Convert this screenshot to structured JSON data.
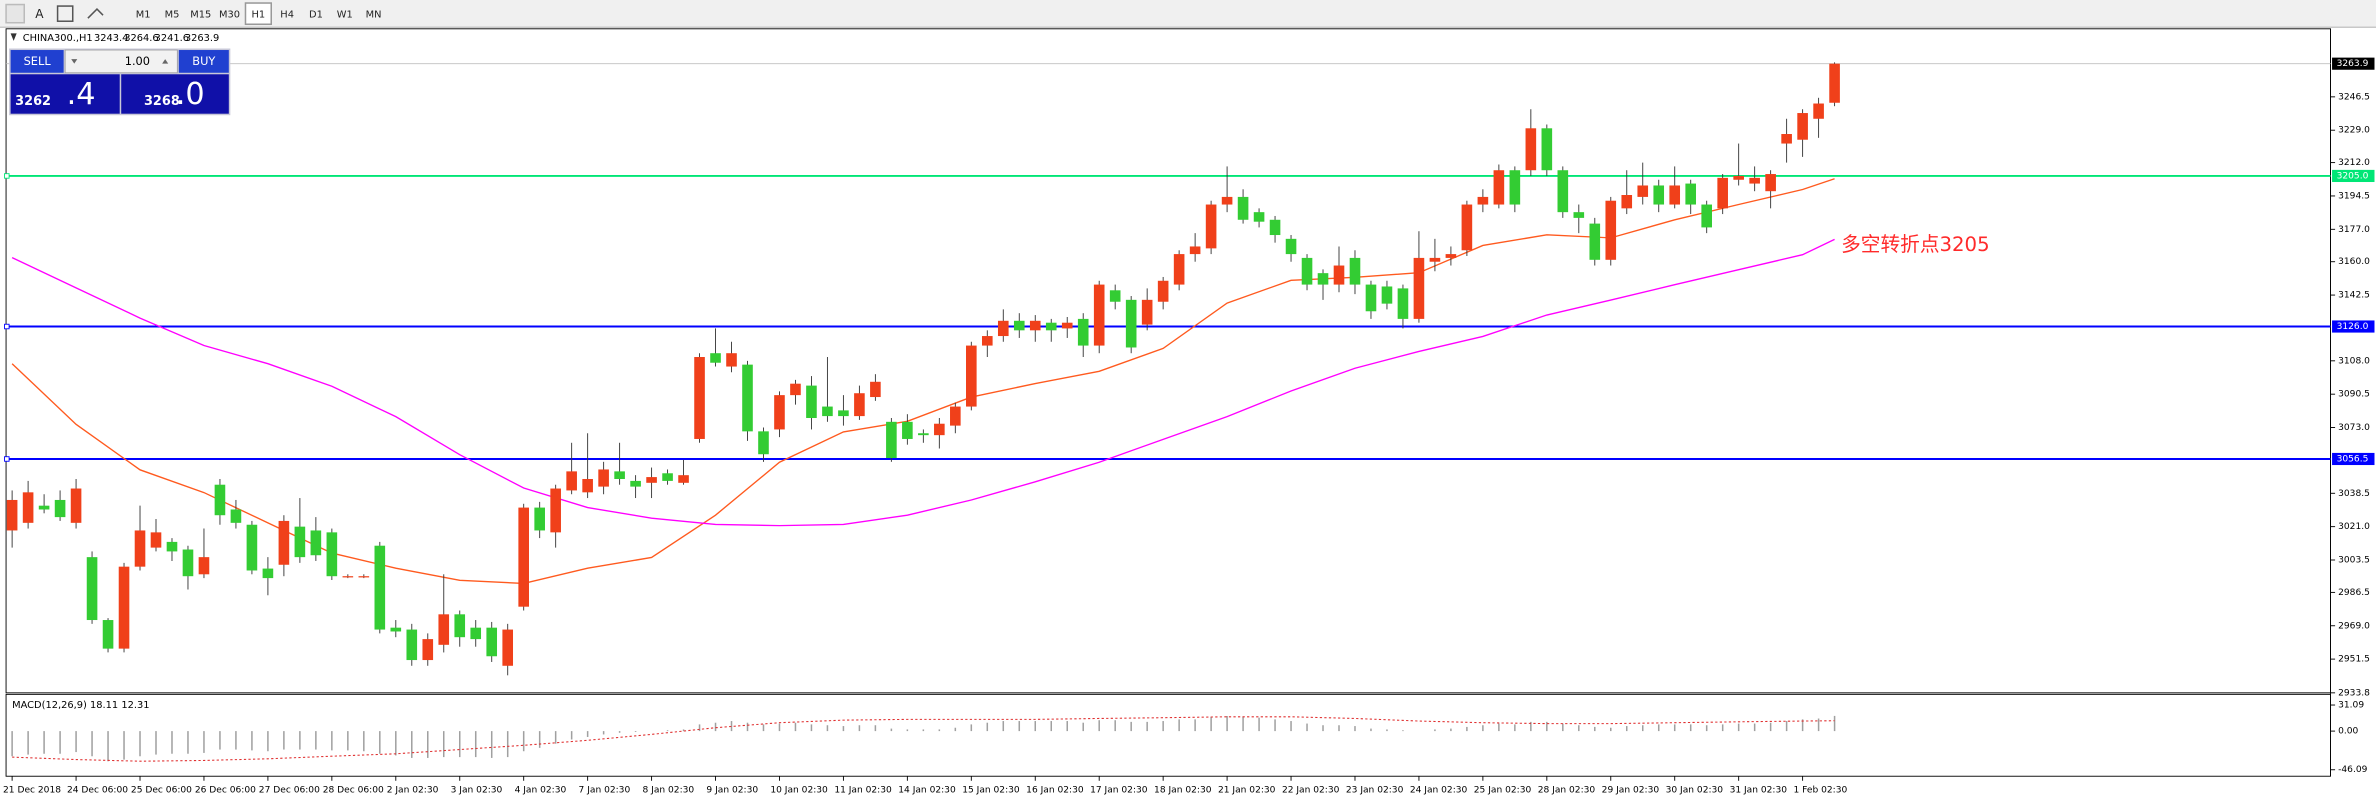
{
  "toolbar": {
    "text_tool": "A",
    "timeframes": [
      "M1",
      "M5",
      "M15",
      "M30",
      "H1",
      "H4",
      "D1",
      "W1",
      "MN"
    ]
  },
  "trade_panel": {
    "sell": "SELL",
    "buy": "BUY",
    "lot": "1.00",
    "sell_price": "3262",
    "sell_pips": ".4",
    "buy_price": "3268",
    "buy_pips": ".0"
  },
  "chart_data": {
    "type": "candlestick",
    "title": "CHINA300.,H1",
    "header_values": [
      3243.4,
      3264.6,
      3241.6,
      3263.9
    ],
    "bull_color": "#f0401a",
    "bear_color": "#33cc33",
    "categories": [
      "21 Dec 2018",
      null,
      null,
      null,
      "24 Dec 06:00",
      null,
      null,
      null,
      "25 Dec 06:00",
      null,
      null,
      null,
      "26 Dec 06:00",
      null,
      null,
      null,
      "27 Dec 06:00",
      null,
      null,
      null,
      "28 Dec 06:00",
      null,
      null,
      null,
      "2 Jan 02:30",
      null,
      null,
      null,
      "3 Jan 02:30",
      null,
      null,
      null,
      "4 Jan 02:30",
      null,
      null,
      null,
      "7 Jan 02:30",
      null,
      null,
      null,
      "8 Jan 02:30",
      null,
      null,
      null,
      "9 Jan 02:30",
      null,
      null,
      null,
      "10 Jan 02:30",
      null,
      null,
      null,
      "11 Jan 02:30",
      null,
      null,
      null,
      "14 Jan 02:30",
      null,
      null,
      null,
      "15 Jan 02:30",
      null,
      null,
      null,
      "16 Jan 02:30",
      null,
      null,
      null,
      "17 Jan 02:30",
      null,
      null,
      null,
      "18 Jan 02:30",
      null,
      null,
      null,
      "21 Jan 02:30",
      null,
      null,
      null,
      "22 Jan 02:30",
      null,
      null,
      null,
      "23 Jan 02:30",
      null,
      null,
      null,
      "24 Jan 02:30",
      null,
      null,
      null,
      "25 Jan 02:30",
      null,
      null,
      null,
      "28 Jan 02:30",
      null,
      null,
      null,
      "29 Jan 02:30",
      null,
      null,
      null,
      "30 Jan 02:30",
      null,
      null,
      null,
      "31 Jan 02:30",
      null,
      null,
      null,
      "1 Feb 02:30",
      null,
      null
    ],
    "open": [
      3019,
      3023,
      3032,
      3035,
      3023,
      3005,
      2972,
      2957,
      3000,
      3010,
      3013,
      3009,
      2996,
      3043,
      3030,
      3022,
      2999,
      3001,
      3021,
      3019,
      3018,
      2995,
      2995,
      3011,
      2968,
      2967,
      2951,
      2959,
      2975,
      2968,
      2968,
      2948,
      2979,
      3031,
      3018,
      3040,
      3039,
      3042,
      3050,
      3045,
      3044,
      3049,
      3044,
      3067,
      3112,
      3105,
      3106,
      3071,
      3072,
      3090,
      3095,
      3084,
      3082,
      3079,
      3089,
      3076,
      3076,
      3070,
      3069,
      3074,
      3084,
      3116,
      3121,
      3129,
      3124,
      3128,
      3125,
      3130,
      3116,
      3145,
      3140,
      3127,
      3139,
      3148,
      3164,
      3167,
      3190,
      3194,
      3186,
      3182,
      3172,
      3162,
      3154,
      3148,
      3162,
      3148,
      3147,
      3146,
      3130,
      3160,
      3162,
      3166,
      3190,
      3190,
      3208,
      3208,
      3230,
      3208,
      3186,
      3180,
      3161,
      3188,
      3194,
      3200,
      3190,
      3201,
      3190,
      3188,
      3203,
      3201,
      3197,
      3222,
      3224,
      3235,
      3243.4
    ],
    "high": [
      3040,
      3045,
      3038,
      3040,
      3046,
      3008,
      2973,
      3002,
      3032,
      3025,
      3015,
      3011,
      3020,
      3046,
      3035,
      3024,
      3005,
      3027,
      3036,
      3026,
      3020,
      2996,
      2996,
      3013,
      2972,
      2970,
      2965,
      2996,
      2977,
      2972,
      2971,
      2970,
      3033,
      3034,
      3043,
      3065,
      3070,
      3055,
      3065,
      3048,
      3052,
      3051,
      3056,
      3112,
      3125,
      3118,
      3108,
      3073,
      3092,
      3098,
      3100,
      3110,
      3090,
      3095,
      3101,
      3078,
      3080,
      3072,
      3078,
      3086,
      3118,
      3124,
      3135,
      3133,
      3132,
      3130,
      3131,
      3133,
      3150,
      3148,
      3142,
      3146,
      3152,
      3166,
      3175,
      3192,
      3210,
      3198,
      3188,
      3184,
      3174,
      3164,
      3156,
      3168,
      3166,
      3150,
      3150,
      3148,
      3176,
      3172,
      3168,
      3192,
      3198,
      3211,
      3210,
      3240,
      3232,
      3210,
      3190,
      3183,
      3194,
      3208,
      3212,
      3203,
      3210,
      3203,
      3192,
      3206,
      3222,
      3210,
      3208,
      3235,
      3240,
      3246,
      3264.6
    ],
    "low": [
      3010,
      3020,
      3028,
      3024,
      3020,
      2970,
      2955,
      2955,
      2998,
      3008,
      3003,
      2988,
      2994,
      3022,
      3020,
      2996,
      2985,
      2995,
      3002,
      3003,
      2993,
      2994,
      2994,
      2965,
      2963,
      2948,
      2948,
      2955,
      2958,
      2958,
      2950,
      2943,
      2977,
      3015,
      3010,
      3038,
      3036,
      3038,
      3043,
      3036,
      3036,
      3043,
      3043,
      3065,
      3105,
      3102,
      3066,
      3055,
      3068,
      3085,
      3072,
      3076,
      3074,
      3077,
      3087,
      3055,
      3064,
      3065,
      3062,
      3070,
      3082,
      3110,
      3118,
      3120,
      3118,
      3118,
      3120,
      3110,
      3112,
      3135,
      3112,
      3124,
      3135,
      3145,
      3160,
      3164,
      3186,
      3180,
      3178,
      3170,
      3160,
      3145,
      3140,
      3144,
      3143,
      3130,
      3135,
      3125,
      3128,
      3155,
      3158,
      3163,
      3186,
      3188,
      3186,
      3205,
      3205,
      3183,
      3175,
      3158,
      3158,
      3185,
      3190,
      3186,
      3188,
      3185,
      3175,
      3185,
      3200,
      3197,
      3188,
      3212,
      3215,
      3225,
      3241.6
    ],
    "close": [
      3035,
      3039,
      3030,
      3026,
      3041,
      2972,
      2957,
      3000,
      3019,
      3018,
      3008,
      2995,
      3005,
      3027,
      3023,
      2998,
      2994,
      3024,
      3005,
      3006,
      2995,
      2995,
      2995,
      2967,
      2966,
      2951,
      2962,
      2975,
      2963,
      2962,
      2953,
      2967,
      3031,
      3019,
      3041,
      3050,
      3046,
      3051,
      3046,
      3042,
      3047,
      3045,
      3048,
      3110,
      3107,
      3112,
      3071,
      3059,
      3090,
      3096,
      3078,
      3079,
      3079,
      3091,
      3097,
      3057,
      3067,
      3069,
      3075,
      3084,
      3116,
      3121,
      3129,
      3124,
      3129,
      3124,
      3128,
      3116,
      3148,
      3139,
      3115,
      3140,
      3150,
      3164,
      3168,
      3190,
      3194,
      3182,
      3181,
      3174,
      3164,
      3148,
      3148,
      3158,
      3148,
      3134,
      3138,
      3130,
      3162,
      3162,
      3164,
      3190,
      3194,
      3208,
      3190,
      3230,
      3208,
      3186,
      3183,
      3161,
      3192,
      3195,
      3200,
      3190,
      3200,
      3190,
      3178,
      3204,
      3205,
      3204,
      3206,
      3227,
      3238,
      3243,
      3263.9
    ],
    "ma_x": [
      0,
      4,
      8,
      12,
      16,
      20,
      24,
      28,
      32,
      36,
      40,
      44,
      48,
      52,
      56,
      60,
      64,
      68,
      72,
      76,
      80,
      84,
      88,
      92,
      96,
      100,
      104,
      108,
      112,
      114
    ],
    "moving_averages": [
      {
        "color": "#ff5a1f",
        "values": [
          3106.5,
          3074.7,
          3050.8,
          3038.9,
          3023,
          3007.1,
          2999.2,
          2992.8,
          2991.2,
          2999.2,
          3004.8,
          3027,
          3054.8,
          3070.7,
          3076.3,
          3089,
          3096.1,
          3102.5,
          3114.5,
          3138.3,
          3150.2,
          3151.8,
          3154.2,
          3168.5,
          3174.1,
          3172.5,
          3182,
          3190,
          3197.9,
          3203.5
        ]
      },
      {
        "color": "#ff00ff",
        "values": [
          3162.2,
          3146.3,
          3130.4,
          3116,
          3106.5,
          3094.6,
          3078.7,
          3058.8,
          3041.3,
          3031,
          3025.4,
          3022.2,
          3021.5,
          3022.2,
          3027,
          3035,
          3044.5,
          3054.8,
          3066.8,
          3078.7,
          3092.2,
          3104.1,
          3112.9,
          3120.8,
          3132,
          3139.9,
          3147.9,
          3155.8,
          3163.7,
          3171.7
        ]
      }
    ],
    "levels": [
      {
        "value": 3205,
        "label": "3205.0",
        "color": "#00e676"
      },
      {
        "value": 3126,
        "label": "3126.0",
        "color": "#0000ff"
      },
      {
        "value": 3056.5,
        "label": "3056.5",
        "color": "#0000ff"
      }
    ],
    "current_price": {
      "value": 3263.9,
      "label": "3263.9"
    },
    "annotation": "多空转折点3205",
    "annotation_color": "#ff2a2a",
    "ylim": [
      2933.8,
      3282.2
    ],
    "yticks": [
      3246.5,
      {
        "value": 3229,
        "label": "3229.0"
      },
      {
        "value": 3212,
        "label": "3212.0"
      },
      3194.5,
      {
        "value": 3177,
        "label": "3177.0"
      },
      {
        "value": 3160,
        "label": "3160.0"
      },
      3142.5,
      {
        "value": 3108,
        "label": "3108.0"
      },
      3090.5,
      {
        "value": 3073,
        "label": "3073.0"
      },
      3038.5,
      {
        "value": 3021,
        "label": "3021.0"
      },
      3003.5,
      2986.5,
      {
        "value": 2969,
        "label": "2969.0"
      },
      2951.5,
      2933.8
    ],
    "macd": {
      "title": "MACD(12,26,9)",
      "main_value": 18.11,
      "signal_value": 12.31,
      "ylim": [
        -52,
        42
      ],
      "yticks": [
        31.09,
        {
          "value": 0,
          "label": "0.00"
        },
        -46.09
      ],
      "histogram_color": "#a0a0a0",
      "signal_color": "#e03030",
      "histogram": [
        -30,
        -28,
        -27,
        -27,
        -25,
        -30,
        -36,
        -34,
        -30,
        -28,
        -27,
        -27,
        -26,
        -22,
        -22,
        -23,
        -24,
        -22,
        -22,
        -22,
        -23,
        -23,
        -24,
        -27,
        -29,
        -32,
        -32,
        -31,
        -31,
        -31,
        -32,
        -31,
        -24,
        -20,
        -15,
        -10,
        -7,
        -4,
        -2,
        -1,
        0,
        1,
        2,
        8,
        10,
        12,
        10,
        8,
        9,
        10,
        8,
        7,
        6,
        7,
        7,
        3,
        2,
        2,
        2,
        4,
        8,
        10,
        12,
        12,
        12,
        12,
        12,
        10,
        13,
        13,
        11,
        11,
        12,
        14,
        14,
        17,
        18,
        17,
        16,
        14,
        12,
        9,
        7,
        7,
        6,
        3,
        2,
        1,
        0,
        2,
        3,
        5,
        7,
        9,
        8,
        11,
        11,
        9,
        7,
        5,
        4,
        6,
        7,
        8,
        8,
        8,
        7,
        8,
        9,
        9,
        10,
        12,
        14,
        15,
        18.11
      ],
      "signal": [
        -31,
        -34,
        -36,
        -35,
        -33,
        -30,
        -27,
        -22,
        -17,
        -11,
        -4,
        4,
        10,
        13,
        14,
        14,
        14,
        15,
        16,
        17,
        17,
        15,
        12,
        10,
        9,
        9,
        10,
        11,
        12,
        12.31
      ]
    }
  }
}
